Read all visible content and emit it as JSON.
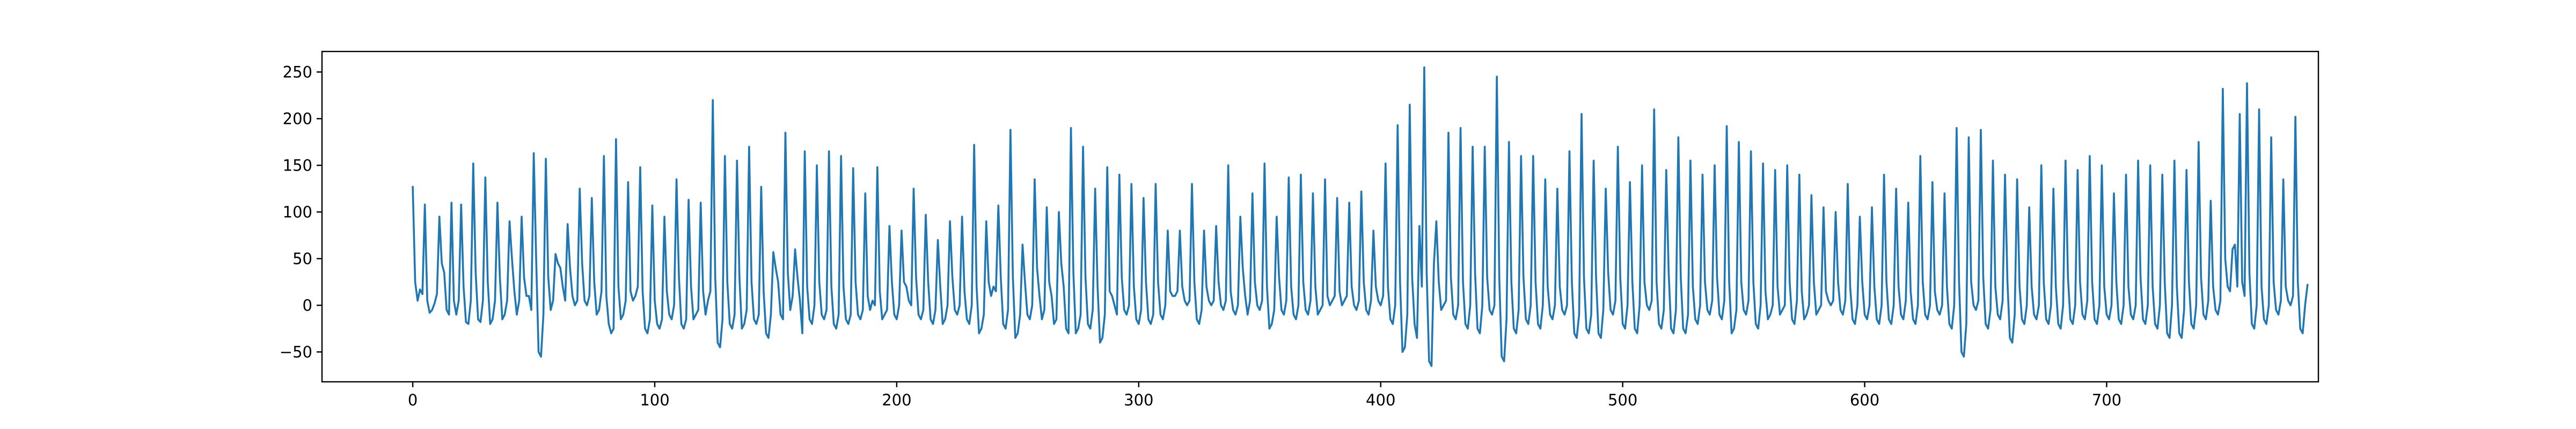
{
  "chart_data": {
    "type": "line",
    "title": "",
    "xlabel": "",
    "ylabel": "",
    "xlim": [
      -37.5,
      787.5
    ],
    "ylim": [
      -82,
      272
    ],
    "x_ticks": [
      0,
      100,
      200,
      300,
      400,
      500,
      600,
      700
    ],
    "x_tick_labels": [
      "0",
      "100",
      "200",
      "300",
      "400",
      "500",
      "600",
      "700"
    ],
    "y_ticks": [
      -50,
      0,
      50,
      100,
      150,
      200,
      250
    ],
    "y_tick_labels": [
      "−50",
      "0",
      "50",
      "100",
      "150",
      "200",
      "250"
    ],
    "grid": false,
    "legend": "none",
    "series": [
      {
        "color": "#1f77b4",
        "x_start": 0,
        "x_step": 1,
        "values": [
          127,
          25,
          5,
          17,
          12,
          108,
          5,
          -8,
          -5,
          2,
          12,
          95,
          45,
          35,
          -5,
          -10,
          110,
          5,
          -10,
          5,
          108,
          20,
          -18,
          -20,
          5,
          152,
          35,
          -15,
          -18,
          5,
          137,
          25,
          -20,
          -15,
          5,
          110,
          30,
          -15,
          -10,
          5,
          90,
          50,
          15,
          -10,
          5,
          95,
          30,
          10,
          10,
          -5,
          163,
          50,
          -50,
          -55,
          -10,
          157,
          30,
          -5,
          5,
          55,
          45,
          40,
          20,
          5,
          87,
          40,
          10,
          0,
          5,
          125,
          45,
          5,
          0,
          10,
          115,
          25,
          -10,
          -5,
          15,
          160,
          10,
          -20,
          -30,
          -25,
          178,
          20,
          -15,
          -10,
          5,
          132,
          15,
          5,
          10,
          20,
          148,
          15,
          -25,
          -30,
          -15,
          107,
          5,
          -20,
          -25,
          -15,
          95,
          15,
          -10,
          -15,
          0,
          135,
          30,
          -20,
          -25,
          -15,
          113,
          20,
          -15,
          -10,
          -5,
          110,
          15,
          -10,
          5,
          15,
          220,
          30,
          -40,
          -45,
          -15,
          160,
          25,
          -20,
          -25,
          -10,
          155,
          30,
          -25,
          -20,
          -5,
          170,
          25,
          -15,
          -20,
          -10,
          127,
          15,
          -30,
          -35,
          -10,
          57,
          40,
          25,
          -10,
          -15,
          185,
          35,
          -5,
          10,
          60,
          30,
          5,
          -30,
          165,
          20,
          -15,
          -20,
          0,
          150,
          25,
          -10,
          -15,
          -5,
          165,
          20,
          -20,
          -25,
          -10,
          160,
          20,
          -15,
          -20,
          -10,
          147,
          25,
          -10,
          -15,
          -5,
          120,
          10,
          -5,
          5,
          0,
          148,
          15,
          -15,
          -10,
          -5,
          85,
          25,
          -10,
          -15,
          0,
          80,
          25,
          20,
          5,
          0,
          125,
          30,
          -10,
          -15,
          -5,
          97,
          25,
          -15,
          -20,
          -5,
          70,
          20,
          -20,
          -15,
          0,
          90,
          30,
          -5,
          -10,
          0,
          95,
          15,
          -15,
          -20,
          0,
          172,
          20,
          -30,
          -25,
          -10,
          90,
          25,
          10,
          20,
          15,
          107,
          30,
          -20,
          -25,
          -5,
          188,
          30,
          -35,
          -30,
          -10,
          65,
          25,
          -10,
          -15,
          0,
          135,
          40,
          10,
          -15,
          -5,
          105,
          25,
          10,
          -20,
          -15,
          100,
          45,
          20,
          -25,
          -30,
          190,
          35,
          -30,
          -25,
          -10,
          170,
          30,
          -20,
          -25,
          -5,
          125,
          20,
          -40,
          -35,
          -10,
          148,
          15,
          10,
          0,
          -10,
          140,
          30,
          -5,
          -10,
          0,
          130,
          20,
          -15,
          -20,
          -5,
          115,
          25,
          -15,
          -20,
          -10,
          130,
          25,
          -10,
          -15,
          0,
          80,
          15,
          10,
          10,
          15,
          80,
          20,
          5,
          0,
          5,
          130,
          25,
          -15,
          -20,
          -5,
          80,
          20,
          5,
          0,
          5,
          85,
          25,
          0,
          -5,
          5,
          150,
          15,
          -5,
          -10,
          0,
          95,
          40,
          10,
          -10,
          5,
          120,
          25,
          0,
          -5,
          5,
          152,
          20,
          -25,
          -20,
          -5,
          95,
          30,
          -5,
          -10,
          5,
          137,
          20,
          -10,
          -15,
          0,
          140,
          25,
          -5,
          -10,
          5,
          120,
          20,
          -10,
          -5,
          0,
          135,
          10,
          0,
          5,
          10,
          115,
          15,
          0,
          5,
          10,
          110,
          20,
          0,
          -5,
          5,
          122,
          25,
          -5,
          -10,
          5,
          80,
          20,
          5,
          0,
          10,
          152,
          20,
          -15,
          -20,
          0,
          193,
          25,
          -50,
          -45,
          -10,
          215,
          30,
          -20,
          -35,
          85,
          20,
          255,
          35,
          -60,
          -65,
          45,
          90,
          25,
          -5,
          0,
          5,
          185,
          30,
          -10,
          -15,
          0,
          190,
          25,
          -20,
          -25,
          0,
          170,
          35,
          -25,
          -30,
          0,
          170,
          30,
          -5,
          -10,
          0,
          245,
          30,
          -55,
          -60,
          -15,
          175,
          25,
          -25,
          -30,
          -5,
          160,
          30,
          -15,
          -20,
          0,
          160,
          25,
          -20,
          -25,
          0,
          135,
          20,
          -10,
          -15,
          0,
          125,
          20,
          -5,
          -10,
          0,
          165,
          25,
          -30,
          -35,
          -10,
          205,
          30,
          -25,
          -30,
          -10,
          155,
          30,
          -30,
          -35,
          -5,
          125,
          35,
          -5,
          -10,
          5,
          170,
          30,
          -20,
          -25,
          0,
          132,
          25,
          -25,
          -30,
          0,
          150,
          25,
          0,
          -5,
          5,
          210,
          25,
          -20,
          -25,
          -5,
          145,
          35,
          -25,
          -30,
          -5,
          180,
          30,
          -25,
          -30,
          -10,
          155,
          20,
          -15,
          -20,
          0,
          140,
          25,
          -5,
          -10,
          5,
          150,
          30,
          -10,
          -15,
          5,
          192,
          25,
          -30,
          -25,
          -5,
          175,
          25,
          -5,
          -10,
          5,
          165,
          25,
          -20,
          -25,
          0,
          152,
          15,
          -15,
          -10,
          0,
          145,
          20,
          -10,
          -5,
          0,
          150,
          25,
          -15,
          -20,
          5,
          140,
          15,
          -15,
          -10,
          0,
          118,
          25,
          -10,
          -5,
          0,
          105,
          15,
          5,
          0,
          5,
          100,
          25,
          -5,
          -10,
          5,
          130,
          20,
          -15,
          -20,
          0,
          95,
          25,
          -10,
          -15,
          0,
          105,
          20,
          -15,
          -20,
          0,
          140,
          25,
          -15,
          -20,
          0,
          125,
          20,
          -10,
          -15,
          5,
          110,
          15,
          -15,
          -20,
          0,
          160,
          25,
          -10,
          -15,
          0,
          132,
          15,
          -5,
          -10,
          0,
          120,
          20,
          -20,
          -25,
          0,
          190,
          25,
          -50,
          -55,
          -20,
          180,
          25,
          0,
          -5,
          5,
          188,
          30,
          -20,
          -25,
          -5,
          155,
          20,
          -10,
          -15,
          5,
          140,
          25,
          -35,
          -40,
          -10,
          135,
          20,
          -15,
          -20,
          0,
          105,
          20,
          -10,
          -15,
          0,
          150,
          25,
          -15,
          -20,
          0,
          125,
          20,
          -20,
          -25,
          0,
          155,
          30,
          -15,
          -20,
          0,
          145,
          25,
          -10,
          -15,
          5,
          160,
          25,
          -15,
          -20,
          0,
          150,
          20,
          -10,
          -15,
          0,
          120,
          25,
          -15,
          -20,
          0,
          140,
          20,
          -10,
          -15,
          0,
          155,
          30,
          -15,
          -20,
          0,
          150,
          20,
          -20,
          -25,
          0,
          140,
          25,
          -30,
          -35,
          0,
          155,
          20,
          -30,
          -35,
          -5,
          145,
          25,
          -20,
          -25,
          0,
          175,
          30,
          -10,
          -15,
          5,
          112,
          20,
          -5,
          -10,
          5,
          232,
          50,
          20,
          15,
          60,
          65,
          20,
          205,
          25,
          10,
          238,
          35,
          -20,
          -25,
          0,
          210,
          20,
          -15,
          -20,
          0,
          180,
          25,
          -5,
          -10,
          5,
          135,
          20,
          5,
          0,
          10,
          202,
          25,
          -25,
          -30,
          0,
          22
        ]
      }
    ]
  }
}
